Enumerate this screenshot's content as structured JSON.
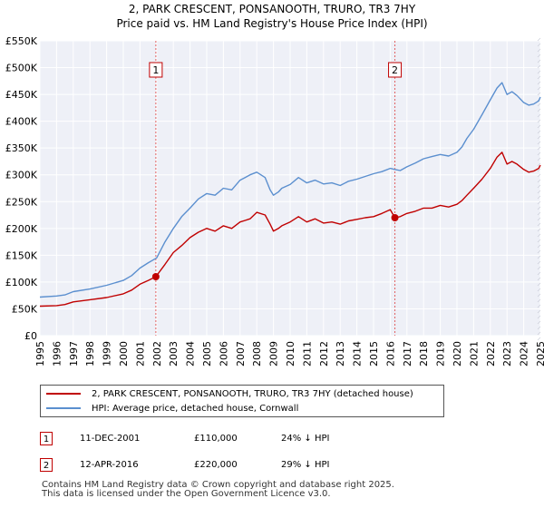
{
  "title": {
    "line1": "2, PARK CRESCENT, PONSANOOTH, TRURO, TR3 7HY",
    "line2": "Price paid vs. HM Land Registry's House Price Index (HPI)"
  },
  "chart_data": {
    "type": "line",
    "title": "2, PARK CRESCENT, PONSANOOTH, TRURO, TR3 7HY — Price paid vs. HM Land Registry's House Price Index (HPI)",
    "xlim": [
      1995,
      2025
    ],
    "ylim": [
      0,
      550000
    ],
    "x_ticks": [
      1995,
      1996,
      1997,
      1998,
      1999,
      2000,
      2001,
      2002,
      2003,
      2004,
      2005,
      2006,
      2007,
      2008,
      2009,
      2010,
      2011,
      2012,
      2013,
      2014,
      2015,
      2016,
      2017,
      2018,
      2019,
      2020,
      2021,
      2022,
      2023,
      2024,
      2025
    ],
    "y_ticks": [
      {
        "value": 0,
        "label": "£0"
      },
      {
        "value": 50000,
        "label": "£50K"
      },
      {
        "value": 100000,
        "label": "£100K"
      },
      {
        "value": 150000,
        "label": "£150K"
      },
      {
        "value": 200000,
        "label": "£200K"
      },
      {
        "value": 250000,
        "label": "£250K"
      },
      {
        "value": 300000,
        "label": "£300K"
      },
      {
        "value": 350000,
        "label": "£350K"
      },
      {
        "value": 400000,
        "label": "£400K"
      },
      {
        "value": 450000,
        "label": "£450K"
      },
      {
        "value": 500000,
        "label": "£500K"
      },
      {
        "value": 550000,
        "label": "£550K"
      }
    ],
    "grid": true,
    "series": [
      {
        "name": "2, PARK CRESCENT, PONSANOOTH, TRURO, TR3 7HY (detached house)",
        "color": "#c00000",
        "x": [
          1995,
          1996,
          1996.5,
          1997,
          1998,
          1999,
          2000,
          2000.5,
          2001,
          2001.5,
          2001.95,
          2002.5,
          2003,
          2003.5,
          2004,
          2004.5,
          2005,
          2005.5,
          2006,
          2006.5,
          2007,
          2007.3,
          2007.6,
          2008,
          2008.5,
          2008.8,
          2009,
          2009.3,
          2009.5,
          2010,
          2010.5,
          2011,
          2011.5,
          2012,
          2012.5,
          2013,
          2013.5,
          2014,
          2014.5,
          2015,
          2015.5,
          2016,
          2016.28,
          2016.6,
          2017,
          2017.5,
          2018,
          2018.5,
          2019,
          2019.5,
          2020,
          2020.3,
          2020.6,
          2021,
          2021.5,
          2022,
          2022.4,
          2022.7,
          2023,
          2023.3,
          2023.6,
          2024,
          2024.3,
          2024.6,
          2024.9,
          2025
        ],
        "values": [
          55000,
          56000,
          58000,
          63000,
          67000,
          71000,
          78000,
          85000,
          96000,
          103000,
          110000,
          133000,
          155000,
          168000,
          183000,
          193000,
          200000,
          195000,
          205000,
          200000,
          212000,
          215000,
          218000,
          230000,
          225000,
          208000,
          195000,
          200000,
          205000,
          212000,
          222000,
          212000,
          218000,
          210000,
          212000,
          208000,
          214000,
          217000,
          220000,
          222000,
          228000,
          235000,
          220000,
          222000,
          228000,
          232000,
          238000,
          238000,
          243000,
          240000,
          245000,
          252000,
          262000,
          275000,
          292000,
          312000,
          333000,
          342000,
          320000,
          325000,
          320000,
          310000,
          305000,
          307000,
          312000,
          318000
        ]
      },
      {
        "name": "HPI: Average price, detached house, Cornwall",
        "color": "#5b8fcf",
        "x": [
          1995,
          1996,
          1996.5,
          1997,
          1998,
          1999,
          2000,
          2000.5,
          2001,
          2001.5,
          2002,
          2002.5,
          2003,
          2003.5,
          2004,
          2004.5,
          2005,
          2005.5,
          2006,
          2006.5,
          2007,
          2007.3,
          2007.6,
          2008,
          2008.5,
          2008.8,
          2009,
          2009.3,
          2009.5,
          2010,
          2010.5,
          2011,
          2011.5,
          2012,
          2012.5,
          2013,
          2013.5,
          2014,
          2014.5,
          2015,
          2015.5,
          2016,
          2016.28,
          2016.6,
          2017,
          2017.5,
          2018,
          2018.5,
          2019,
          2019.5,
          2020,
          2020.3,
          2020.6,
          2021,
          2021.5,
          2022,
          2022.4,
          2022.7,
          2023,
          2023.3,
          2023.6,
          2024,
          2024.3,
          2024.6,
          2024.9,
          2025
        ],
        "values": [
          72000,
          74000,
          76000,
          82000,
          87000,
          94000,
          103000,
          112000,
          126000,
          136000,
          145000,
          175000,
          200000,
          222000,
          238000,
          255000,
          265000,
          262000,
          275000,
          272000,
          290000,
          295000,
          300000,
          305000,
          295000,
          272000,
          262000,
          268000,
          275000,
          282000,
          295000,
          285000,
          290000,
          283000,
          285000,
          280000,
          288000,
          292000,
          297000,
          302000,
          306000,
          312000,
          310000,
          308000,
          315000,
          322000,
          330000,
          334000,
          338000,
          335000,
          342000,
          352000,
          368000,
          385000,
          412000,
          440000,
          462000,
          472000,
          450000,
          455000,
          448000,
          435000,
          430000,
          432000,
          438000,
          445000
        ]
      }
    ],
    "annotations": [
      {
        "label": "1",
        "x": 2001.95,
        "y": 110000
      },
      {
        "label": "2",
        "x": 2016.28,
        "y": 220000
      }
    ]
  },
  "legend": {
    "red_label": "2, PARK CRESCENT, PONSANOOTH, TRURO, TR3 7HY (detached house)",
    "blue_label": "HPI: Average price, detached house, Cornwall",
    "red_color": "#c00000",
    "blue_color": "#5b8fcf"
  },
  "table": [
    {
      "num": "1",
      "date": "11-DEC-2001",
      "price": "£110,000",
      "hpi": "24% ↓ HPI"
    },
    {
      "num": "2",
      "date": "12-APR-2016",
      "price": "£220,000",
      "hpi": "29% ↓ HPI"
    }
  ],
  "footer": {
    "line1": "Contains HM Land Registry data © Crown copyright and database right 2025.",
    "line2": "This data is licensed under the Open Government Licence v3.0."
  }
}
